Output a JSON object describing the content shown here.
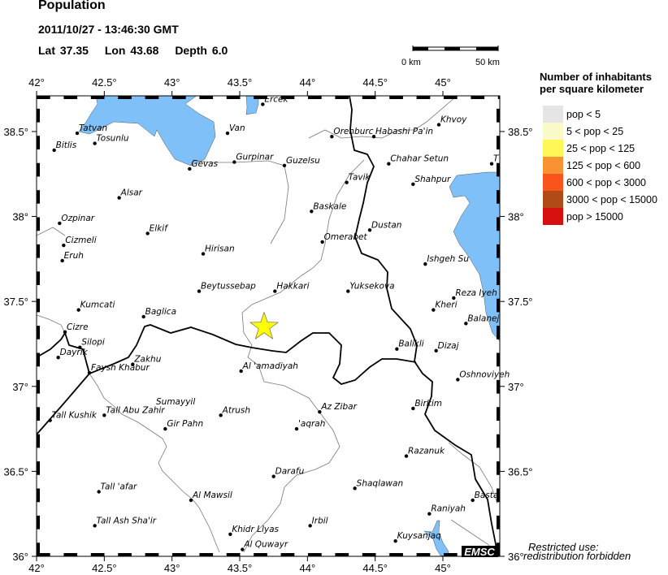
{
  "header": {
    "title": "Population",
    "datetime": "2011/10/27 - 13:46:30 GMT",
    "lat_label": "Lat 37.35",
    "lon_label": "Lon  43.68",
    "depth_label": "Depth  6.0"
  },
  "scalebar": {
    "start": "0 km",
    "end": "50 km"
  },
  "map": {
    "lon_range": [
      42,
      45.42
    ],
    "lat_range": [
      36,
      38.71
    ],
    "lon_ticks": [
      {
        "v": 42,
        "label": "42°"
      },
      {
        "v": 42.5,
        "label": "42.5°"
      },
      {
        "v": 43,
        "label": "43°"
      },
      {
        "v": 43.5,
        "label": "43.5°"
      },
      {
        "v": 44,
        "label": "44°"
      },
      {
        "v": 44.5,
        "label": "44.5°"
      },
      {
        "v": 45,
        "label": "45°"
      }
    ],
    "lat_ticks": [
      {
        "v": 38.5,
        "label": "38.5°"
      },
      {
        "v": 38,
        "label": "38°"
      },
      {
        "v": 37.5,
        "label": "37.5°"
      },
      {
        "v": 37,
        "label": "37°"
      },
      {
        "v": 36.5,
        "label": "36.5°"
      },
      {
        "v": 36,
        "label": "36°"
      }
    ],
    "epicenter": {
      "lat": 37.35,
      "lon": 43.68,
      "color": "#ffff00"
    },
    "water_color": "#80c0f8",
    "logo": "EMSC",
    "cities": [
      {
        "name": "Ercek",
        "lon": 43.67,
        "lat": 38.66
      },
      {
        "name": "Van",
        "lon": 43.41,
        "lat": 38.49
      },
      {
        "name": "Tatvan",
        "lon": 42.3,
        "lat": 38.49
      },
      {
        "name": "Tosunlu",
        "lon": 42.43,
        "lat": 38.43
      },
      {
        "name": "Bitlis",
        "lon": 42.13,
        "lat": 38.39
      },
      {
        "name": "Gevas",
        "lon": 43.13,
        "lat": 38.28
      },
      {
        "name": "Gurpinar",
        "lon": 43.46,
        "lat": 38.32
      },
      {
        "name": "Guzelsu",
        "lon": 43.83,
        "lat": 38.3
      },
      {
        "name": "Orenburc",
        "lon": 44.18,
        "lat": 38.47
      },
      {
        "name": "Habashi Pa'in",
        "lon": 44.49,
        "lat": 38.47
      },
      {
        "name": "Khvoy",
        "lon": 44.97,
        "lat": 38.54
      },
      {
        "name": "Chahar Setun",
        "lon": 44.6,
        "lat": 38.31
      },
      {
        "name": "Tavik",
        "lon": 44.29,
        "lat": 38.2
      },
      {
        "name": "Shahpur",
        "lon": 44.78,
        "lat": 38.19
      },
      {
        "name": "T",
        "lon": 45.36,
        "lat": 38.31
      },
      {
        "name": "Alsar",
        "lon": 42.61,
        "lat": 38.11
      },
      {
        "name": "Baskale",
        "lon": 44.03,
        "lat": 38.03
      },
      {
        "name": "Ozpinar",
        "lon": 42.17,
        "lat": 37.96
      },
      {
        "name": "Dustan",
        "lon": 44.46,
        "lat": 37.92
      },
      {
        "name": "Elkif",
        "lon": 42.82,
        "lat": 37.9
      },
      {
        "name": "Cizmeli",
        "lon": 42.2,
        "lat": 37.83
      },
      {
        "name": "Omerabet",
        "lon": 44.11,
        "lat": 37.85
      },
      {
        "name": "Hirisan",
        "lon": 43.23,
        "lat": 37.78
      },
      {
        "name": "Eruh",
        "lon": 42.19,
        "lat": 37.74
      },
      {
        "name": "Ishgeh Su",
        "lon": 44.87,
        "lat": 37.72
      },
      {
        "name": "Beytussebap",
        "lon": 43.2,
        "lat": 37.56
      },
      {
        "name": "Hakkari",
        "lon": 43.76,
        "lat": 37.56
      },
      {
        "name": "Yuksekova",
        "lon": 44.3,
        "lat": 37.56
      },
      {
        "name": "Reza Iyeh",
        "lon": 45.08,
        "lat": 37.52
      },
      {
        "name": "Kumcati",
        "lon": 42.31,
        "lat": 37.45
      },
      {
        "name": "Kheri",
        "lon": 44.93,
        "lat": 37.45
      },
      {
        "name": "Baglica",
        "lon": 42.79,
        "lat": 37.41
      },
      {
        "name": "Balanej",
        "lon": 45.17,
        "lat": 37.37
      },
      {
        "name": "Cizre",
        "lon": 42.21,
        "lat": 37.32
      },
      {
        "name": "Silopi",
        "lon": 42.32,
        "lat": 37.23
      },
      {
        "name": "Balikli",
        "lon": 44.66,
        "lat": 37.22
      },
      {
        "name": "Dizaj",
        "lon": 44.95,
        "lat": 37.21
      },
      {
        "name": "Dayrik",
        "lon": 42.16,
        "lat": 37.17
      },
      {
        "name": "Zakhu",
        "lon": 42.71,
        "lat": 37.13
      },
      {
        "name": "Faysh Khabur",
        "lon": 42.39,
        "lat": 37.08
      },
      {
        "name": "Al 'amadiyah",
        "lon": 43.51,
        "lat": 37.09
      },
      {
        "name": "Oshnoviyeh",
        "lon": 45.11,
        "lat": 37.04
      },
      {
        "name": "Az Zibar",
        "lon": 44.09,
        "lat": 36.85
      },
      {
        "name": "Birkim",
        "lon": 44.78,
        "lat": 36.87
      },
      {
        "name": "Tall Abu Zahir",
        "lon": 42.5,
        "lat": 36.83
      },
      {
        "name": "Sumayyil",
        "lon": 42.87,
        "lat": 36.88,
        "nodot": true
      },
      {
        "name": "Atrush",
        "lon": 43.36,
        "lat": 36.83
      },
      {
        "name": "Tall Kushik",
        "lon": 42.1,
        "lat": 36.8
      },
      {
        "name": "Gir Pahn",
        "lon": 42.95,
        "lat": 36.75
      },
      {
        "name": "'aqrah",
        "lon": 43.92,
        "lat": 36.75
      },
      {
        "name": "Razanuk",
        "lon": 44.73,
        "lat": 36.59
      },
      {
        "name": "Darafu",
        "lon": 43.75,
        "lat": 36.47
      },
      {
        "name": "Tall 'afar",
        "lon": 42.46,
        "lat": 36.38
      },
      {
        "name": "Shaqlawan",
        "lon": 44.35,
        "lat": 36.4
      },
      {
        "name": "Al Mawsil",
        "lon": 43.14,
        "lat": 36.33
      },
      {
        "name": "Basta",
        "lon": 45.22,
        "lat": 36.33
      },
      {
        "name": "Raniyah",
        "lon": 44.9,
        "lat": 36.25
      },
      {
        "name": "Tall Ash Sha'ir",
        "lon": 42.43,
        "lat": 36.18
      },
      {
        "name": "Irbil",
        "lon": 44.02,
        "lat": 36.18
      },
      {
        "name": "Khidr Llyas",
        "lon": 43.43,
        "lat": 36.13
      },
      {
        "name": "Kuysanjaq",
        "lon": 44.65,
        "lat": 36.09
      },
      {
        "name": "Al Quwayr",
        "lon": 43.52,
        "lat": 36.04
      }
    ]
  },
  "legend": {
    "title_line1": "Number of inhabitants",
    "title_line2": "per square kilometer",
    "items": [
      {
        "label": "pop < 5",
        "color": "#e4e5e4"
      },
      {
        "label": "5 < pop < 25",
        "color": "#fafac8"
      },
      {
        "label": "25 < pop < 125",
        "color": "#fef758"
      },
      {
        "label": "125 < pop < 600",
        "color": "#f89232"
      },
      {
        "label": "600 < pop < 3000",
        "color": "#f9541b"
      },
      {
        "label": "3000 < pop < 15000",
        "color": "#b04a18"
      },
      {
        "label": "pop > 15000",
        "color": "#d60f0f"
      }
    ]
  },
  "notice": {
    "line1": "Restricted use:",
    "line2": "redistribution forbidden"
  }
}
